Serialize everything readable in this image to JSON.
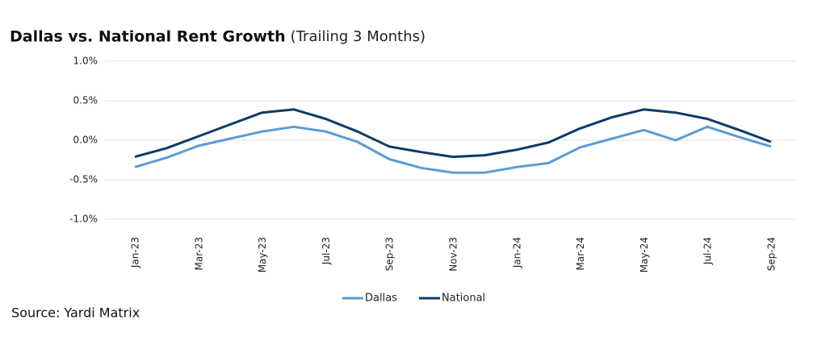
{
  "chart_data": {
    "type": "line",
    "title": "Dallas vs. National Rent Growth",
    "subtitle": "(Trailing 3 Months)",
    "source": "Source: Yardi Matrix",
    "categories": [
      "Jan-23",
      null,
      "Mar-23",
      null,
      "May-23",
      null,
      "Jul-23",
      null,
      "Sep-23",
      null,
      "Nov-23",
      null,
      "Jan-24",
      null,
      "Mar-24",
      null,
      "May-24",
      null,
      "Jul-24",
      null,
      "Sep-24"
    ],
    "series": [
      {
        "name": "Dallas",
        "color": "#5b9bd5",
        "values": [
          -0.34,
          -0.22,
          -0.07,
          0.02,
          0.11,
          0.17,
          0.11,
          -0.02,
          -0.24,
          -0.35,
          -0.41,
          -0.41,
          -0.34,
          -0.29,
          -0.09,
          0.02,
          0.13,
          0.0,
          0.17,
          0.04,
          -0.08
        ]
      },
      {
        "name": "National",
        "color": "#0d3b66",
        "values": [
          -0.21,
          -0.1,
          0.05,
          0.2,
          0.35,
          0.39,
          0.27,
          0.11,
          -0.08,
          -0.15,
          -0.21,
          -0.19,
          -0.12,
          -0.03,
          0.15,
          0.29,
          0.39,
          0.35,
          0.27,
          0.13,
          -0.02
        ]
      }
    ],
    "ylim": [
      -1,
      1
    ],
    "yticks": [
      {
        "value": -1,
        "label": "-1.0%"
      },
      {
        "value": -0.5,
        "label": "-0.5%"
      },
      {
        "value": 0,
        "label": "0.0%"
      },
      {
        "value": 0.5,
        "label": "0.5%"
      },
      {
        "value": 1,
        "label": "1.0%"
      }
    ],
    "grid": true,
    "legend": "bottom"
  }
}
